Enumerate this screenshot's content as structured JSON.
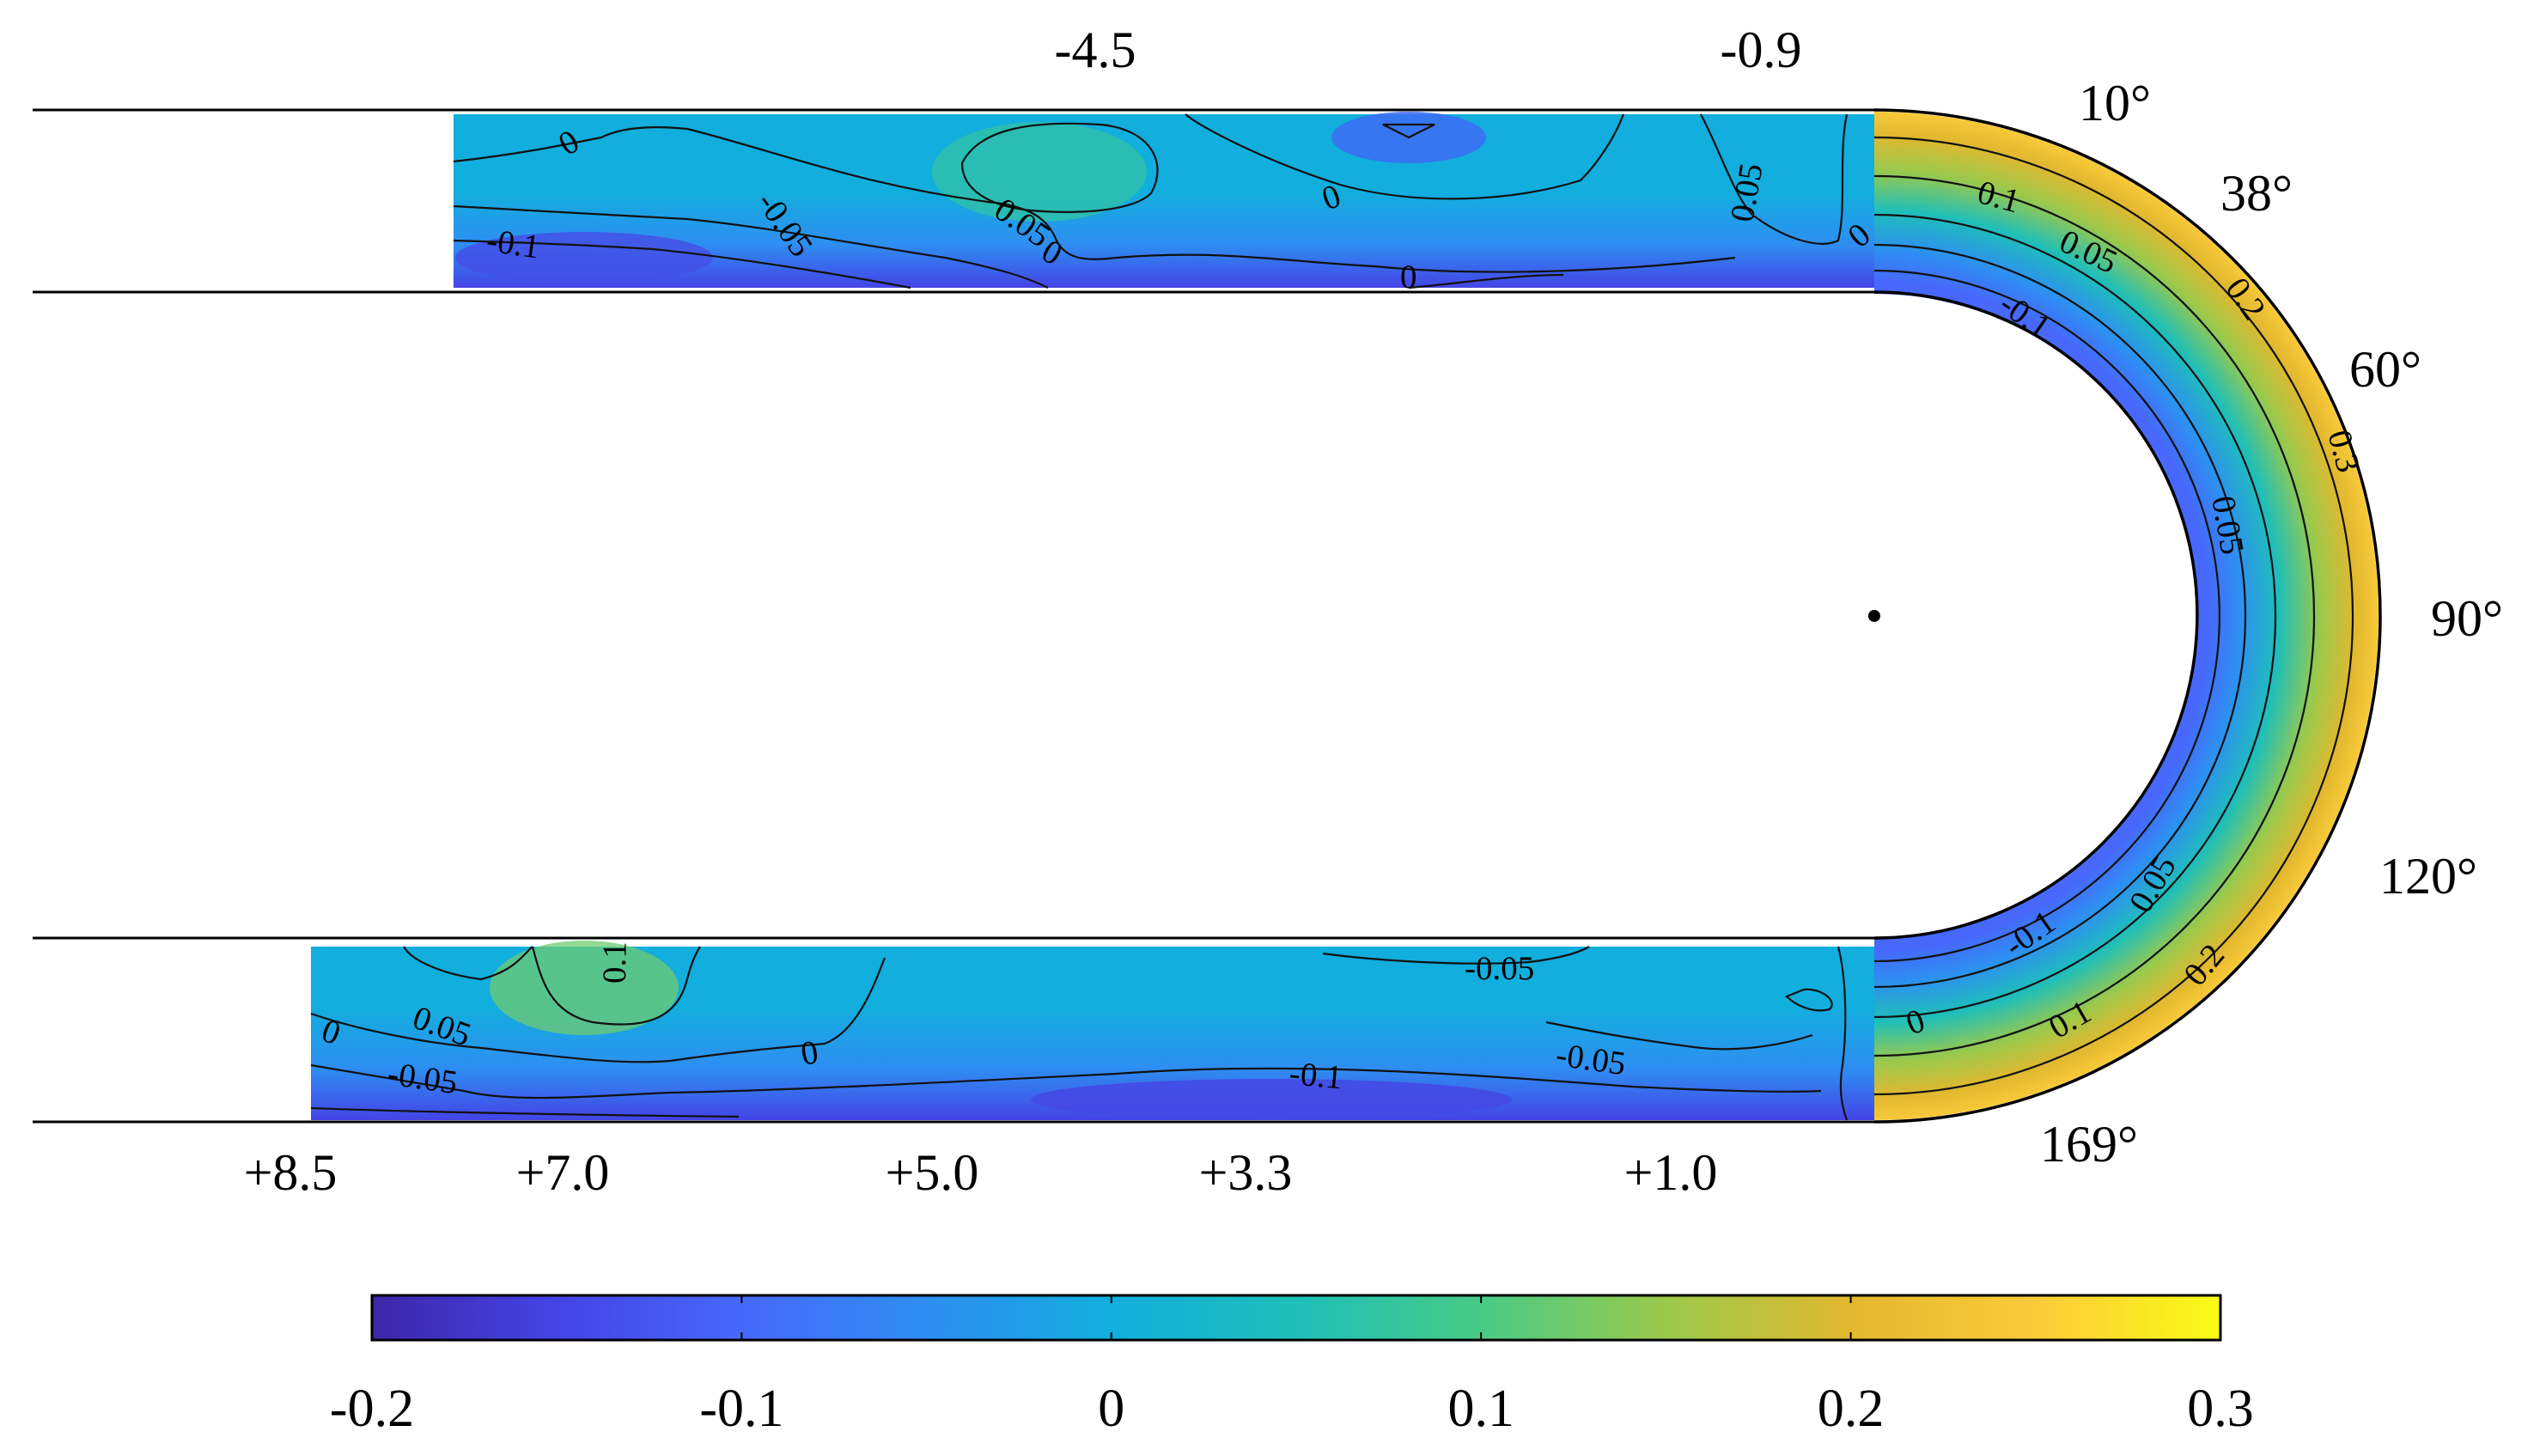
{
  "chart_data": {
    "type": "heatmap",
    "description_kind": "contour map of a scalar field in a U-bend channel",
    "colormap": "parula",
    "colorbar": {
      "min": -0.2,
      "max": 0.3,
      "ticks": [
        -0.2,
        -0.1,
        0,
        0.1,
        0.2,
        0.3
      ],
      "tick_labels": [
        "-0.2",
        "-0.1",
        "0",
        "0.1",
        "0.2",
        "0.3"
      ],
      "placement": "bottom"
    },
    "colors": {
      "c-0.20": "#3e26a8",
      "c-0.15": "#4444e6",
      "c-0.10": "#4768fb",
      "c-0.05": "#2e8ef2",
      "c0.00": "#12aedd",
      "c0.05": "#1fbfb8",
      "c0.10": "#48cb86",
      "c0.15": "#9bc94b",
      "c0.20": "#e2b82f",
      "c0.25": "#fbcb3a",
      "c0.30": "#f9fb15"
    },
    "inlet_leg_positions": [
      "-4.5",
      "-0.9"
    ],
    "outlet_leg_positions": [
      "+8.5",
      "+7.0",
      "+5.0",
      "+3.3",
      "+1.0"
    ],
    "bend_angles": [
      "10°",
      "38°",
      "60°",
      "90°",
      "120°",
      "169°"
    ],
    "contour_levels": [
      -0.1,
      -0.05,
      0,
      0.05,
      0.1,
      0.2,
      0.3
    ],
    "contour_labels": {
      "top": [
        "0",
        "-0.1",
        "-0.05",
        "0.05",
        "0",
        "0",
        "0",
        "0.05"
      ],
      "bend": [
        "0",
        "0.1",
        "0.05",
        "-0.1",
        "0.2",
        "0.3",
        "0.05",
        "-0.1",
        "0.05",
        "0.2",
        "0.1",
        "0"
      ],
      "bottom": [
        "0",
        "0.1",
        "0.05",
        "-0.05",
        "0",
        "-0.05",
        "-0.1",
        "-0.05"
      ]
    }
  }
}
